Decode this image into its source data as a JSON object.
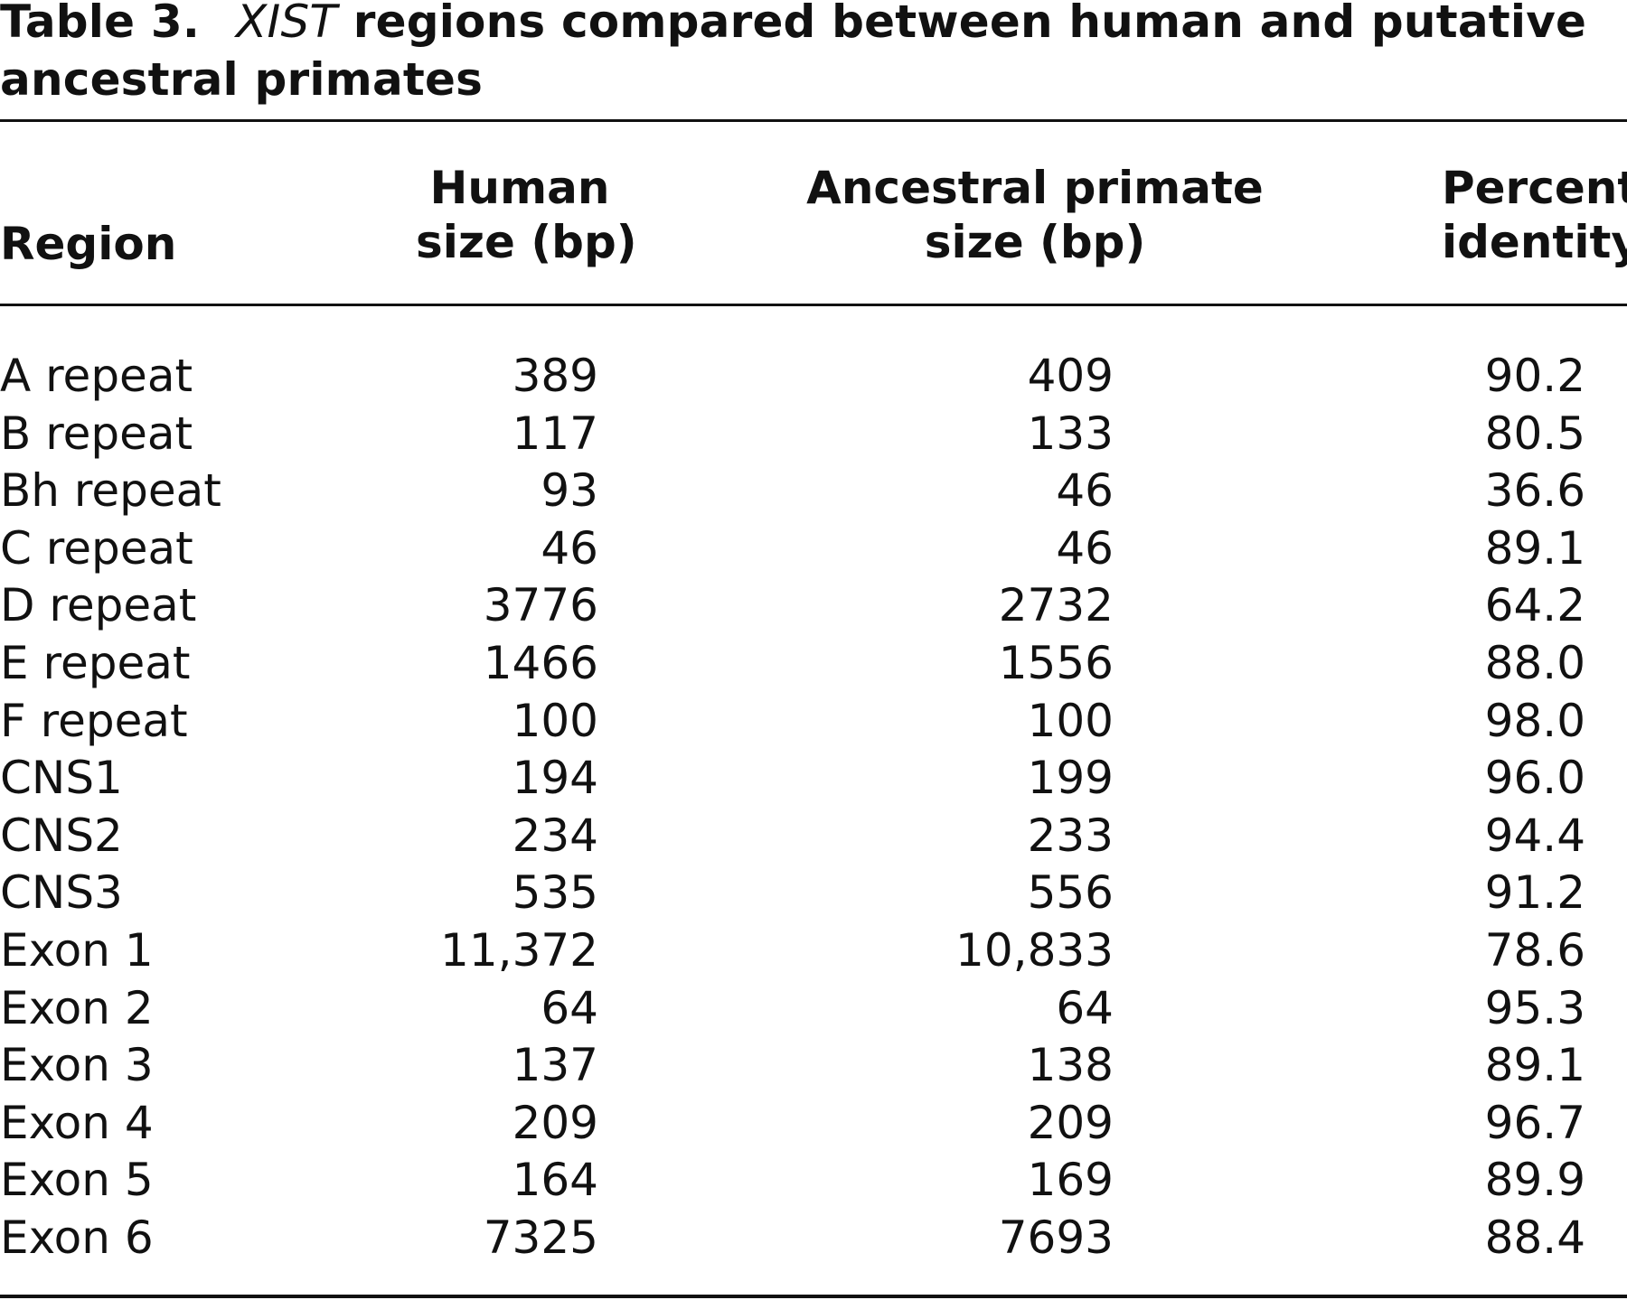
{
  "caption": {
    "label": "Table 3.",
    "gene": "XIST",
    "text": " regions compared between human and putative ancestral primates"
  },
  "table": {
    "headers": {
      "region": "Region",
      "human_line1": "Human",
      "human_line2": "size (bp)",
      "ancestral_line1": "Ancestral primate",
      "ancestral_line2": "size (bp)",
      "percent_line1": "Percent",
      "percent_line2": "identity"
    },
    "rows": [
      {
        "region": "A repeat",
        "human": "389",
        "ancestral": "409",
        "percent": "90.2"
      },
      {
        "region": "B repeat",
        "human": "117",
        "ancestral": "133",
        "percent": "80.5"
      },
      {
        "region": "Bh repeat",
        "human": "93",
        "ancestral": "46",
        "percent": "36.6"
      },
      {
        "region": "C repeat",
        "human": "46",
        "ancestral": "46",
        "percent": "89.1"
      },
      {
        "region": "D repeat",
        "human": "3776",
        "ancestral": "2732",
        "percent": "64.2"
      },
      {
        "region": "E repeat",
        "human": "1466",
        "ancestral": "1556",
        "percent": "88.0"
      },
      {
        "region": "F repeat",
        "human": "100",
        "ancestral": "100",
        "percent": "98.0"
      },
      {
        "region": "CNS1",
        "human": "194",
        "ancestral": "199",
        "percent": "96.0"
      },
      {
        "region": "CNS2",
        "human": "234",
        "ancestral": "233",
        "percent": "94.4"
      },
      {
        "region": "CNS3",
        "human": "535",
        "ancestral": "556",
        "percent": "91.2"
      },
      {
        "region": "Exon 1",
        "human": "11,372",
        "ancestral": "10,833",
        "percent": "78.6"
      },
      {
        "region": "Exon 2",
        "human": "64",
        "ancestral": "64",
        "percent": "95.3"
      },
      {
        "region": "Exon 3",
        "human": "137",
        "ancestral": "138",
        "percent": "89.1"
      },
      {
        "region": "Exon 4",
        "human": "209",
        "ancestral": "209",
        "percent": "96.7"
      },
      {
        "region": "Exon 5",
        "human": "164",
        "ancestral": "169",
        "percent": "89.9"
      },
      {
        "region": "Exon 6",
        "human": "7325",
        "ancestral": "7693",
        "percent": "88.4"
      }
    ]
  }
}
